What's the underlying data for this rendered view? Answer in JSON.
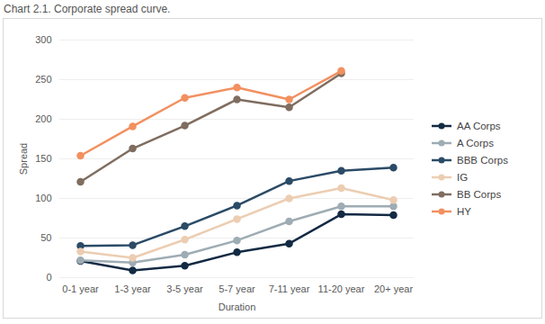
{
  "chart_data": {
    "type": "line",
    "title": "Chart 2.1. Corporate spread curve.",
    "x_label": "Duration",
    "y_label": "Spread",
    "categories": [
      "0-1 year",
      "1-3 year",
      "3-5 year",
      "5-7 year",
      "7-11 year",
      "11-20 year",
      "20+ year"
    ],
    "series": [
      {
        "name": "AA Corps",
        "color": "#132a43",
        "values": [
          21,
          9,
          15,
          32,
          43,
          80,
          79
        ]
      },
      {
        "name": "A Corps",
        "color": "#9eacb4",
        "values": [
          22,
          19,
          29,
          47,
          71,
          90,
          90
        ]
      },
      {
        "name": "BBB Corps",
        "color": "#2b4b66",
        "values": [
          40,
          41,
          65,
          91,
          122,
          135,
          139
        ]
      },
      {
        "name": "IG",
        "color": "#eccdb2",
        "values": [
          33,
          25,
          48,
          74,
          100,
          113,
          98
        ]
      },
      {
        "name": "BB Corps",
        "color": "#7f6d60",
        "values": [
          121,
          163,
          192,
          225,
          215,
          258,
          null
        ]
      },
      {
        "name": "HY",
        "color": "#f2905f",
        "values": [
          154,
          191,
          227,
          240,
          225,
          261,
          null
        ]
      }
    ],
    "ylim": [
      0,
      300
    ],
    "yticks": [
      0,
      50,
      100,
      150,
      200,
      250,
      300
    ],
    "grid": true,
    "legend": "right",
    "marker": "circle",
    "line_style": "solid"
  }
}
